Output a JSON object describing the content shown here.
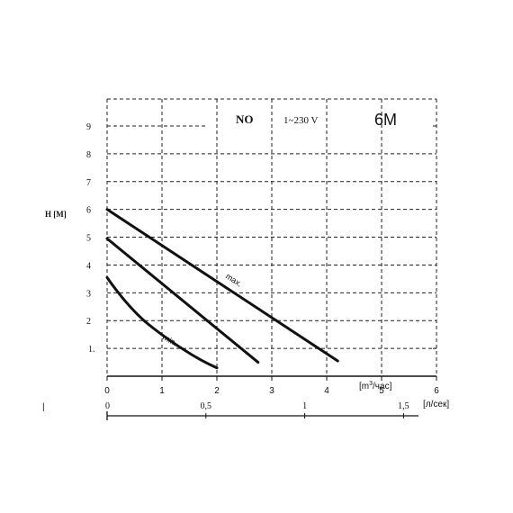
{
  "chart_data": {
    "type": "line",
    "title": {
      "model": "NO",
      "voltage": "1~230 V",
      "size": "6M"
    },
    "ylabel": "H [M]",
    "xlabel": "[m³/час]",
    "xlabel_secondary": "[л/сек]",
    "ylim": [
      0,
      10
    ],
    "xlim": [
      0,
      6
    ],
    "y_ticks": [
      "0",
      "1.",
      "2",
      "3",
      "4",
      "5",
      "6",
      "7",
      "8",
      "9"
    ],
    "x_ticks": [
      "0",
      "1",
      "2",
      "3",
      "4",
      "5",
      "6"
    ],
    "x2_ticks": [
      "0",
      "0,5",
      "1",
      "1,5"
    ],
    "x2_tick_values": [
      0,
      0.5,
      1,
      1.5
    ],
    "x2_factor": 3.6,
    "grid": true,
    "series": [
      {
        "name": "max.",
        "x": [
          0,
          4.2
        ],
        "y": [
          6.0,
          0.55
        ],
        "label_at": [
          2.15,
          3.55
        ]
      },
      {
        "name": "",
        "x": [
          0,
          2.75
        ],
        "y": [
          4.95,
          0.5
        ]
      },
      {
        "name": "min.",
        "x": [
          0,
          0.7,
          1.4,
          2.0
        ],
        "y": [
          3.55,
          1.95,
          0.95,
          0.3
        ],
        "label_at": [
          1.0,
          1.35
        ]
      }
    ]
  },
  "marks": {
    "left_edge": "|",
    "x_unit": "[m",
    "x_unit_sup": "3",
    "x_unit_tail": "/час]"
  }
}
